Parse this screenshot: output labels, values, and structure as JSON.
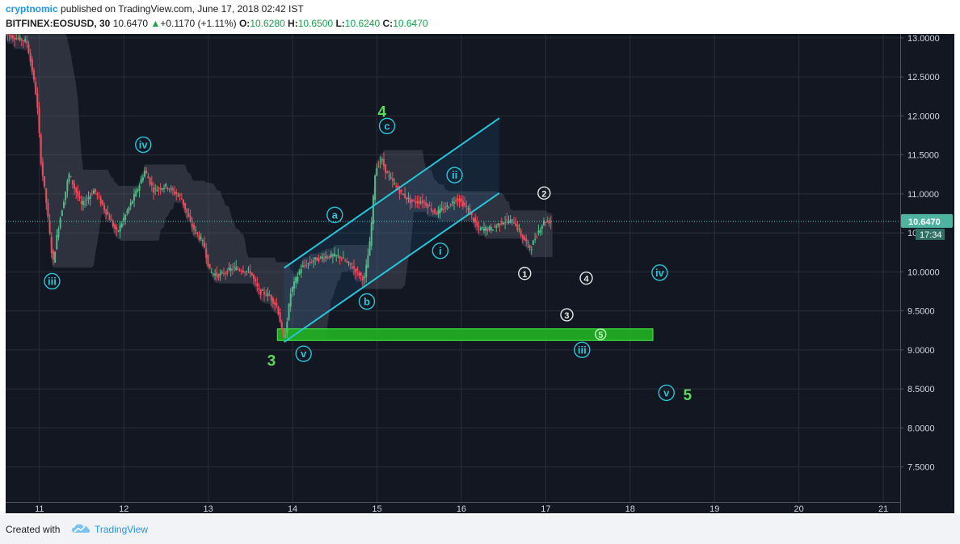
{
  "header": {
    "author": "cryptnomic",
    "published": "published on TradingView.com, June 17, 2018 02:42 IST",
    "symbol": "BITFINEX:EOSUSD, 30",
    "last": "10.6470",
    "change": "+0.1170 (+1.11%)",
    "o_label": "O:",
    "o_value": "10.6280",
    "h_label": "H:",
    "h_value": "10.6500",
    "l_label": "L:",
    "l_value": "10.6240",
    "c_label": "C:",
    "c_value": "10.6470"
  },
  "footer": {
    "created": "Created with",
    "brand": "TradingView"
  },
  "chart_data": {
    "type": "candlestick",
    "x_tick_labels": [
      "11",
      "12",
      "13",
      "14",
      "15",
      "16",
      "17",
      "18",
      "19",
      "20",
      "21"
    ],
    "y_tick_labels": [
      "13.0000",
      "12.5000",
      "12.0000",
      "11.5000",
      "11.0000",
      "10.5000",
      "10.0000",
      "9.5000",
      "9.0000",
      "8.5000",
      "8.0000",
      "7.5000"
    ],
    "y_ticks": [
      13.0,
      12.5,
      12.0,
      11.5,
      11.0,
      10.5,
      10.0,
      9.5,
      9.0,
      8.5,
      8.0,
      7.5
    ],
    "x_range": [
      10.6,
      21.2
    ],
    "y_range": [
      7.05,
      13.05
    ],
    "last_price": 10.647,
    "last_price_label": "10.6470",
    "countdown_label": "17:34",
    "colors": {
      "background": "#131722",
      "up": "#53b987",
      "down": "#eb4d5c",
      "channel": "#26c6da",
      "zone": "#33cc33",
      "wave_major": "#5dd95d",
      "grid": "#2a2e39",
      "price_line": "#4dd0c4"
    },
    "price_path": [
      [
        10.6,
        13.05
      ],
      [
        10.85,
        12.95
      ],
      [
        10.92,
        12.55
      ],
      [
        10.97,
        12.2
      ],
      [
        11.02,
        11.4
      ],
      [
        11.08,
        10.9
      ],
      [
        11.12,
        10.5
      ],
      [
        11.16,
        10.1
      ],
      [
        11.22,
        10.55
      ],
      [
        11.35,
        11.25
      ],
      [
        11.5,
        10.85
      ],
      [
        11.65,
        11.05
      ],
      [
        11.8,
        10.75
      ],
      [
        11.92,
        10.5
      ],
      [
        12.05,
        10.8
      ],
      [
        12.18,
        11.1
      ],
      [
        12.25,
        11.3
      ],
      [
        12.35,
        11.05
      ],
      [
        12.5,
        11.1
      ],
      [
        12.68,
        10.95
      ],
      [
        12.8,
        10.6
      ],
      [
        12.95,
        10.35
      ],
      [
        13.02,
        10.0
      ],
      [
        13.12,
        9.95
      ],
      [
        13.3,
        10.05
      ],
      [
        13.5,
        10.0
      ],
      [
        13.6,
        9.75
      ],
      [
        13.72,
        9.7
      ],
      [
        13.82,
        9.55
      ],
      [
        13.9,
        9.1
      ],
      [
        13.98,
        9.75
      ],
      [
        14.1,
        10.05
      ],
      [
        14.25,
        10.15
      ],
      [
        14.4,
        10.2
      ],
      [
        14.55,
        10.2
      ],
      [
        14.72,
        10.05
      ],
      [
        14.85,
        9.9
      ],
      [
        14.92,
        10.4
      ],
      [
        14.98,
        11.3
      ],
      [
        15.05,
        11.45
      ],
      [
        15.12,
        11.25
      ],
      [
        15.25,
        11.05
      ],
      [
        15.4,
        10.9
      ],
      [
        15.55,
        10.9
      ],
      [
        15.7,
        10.75
      ],
      [
        15.85,
        10.85
      ],
      [
        15.95,
        10.95
      ],
      [
        16.08,
        10.8
      ],
      [
        16.2,
        10.55
      ],
      [
        16.35,
        10.55
      ],
      [
        16.5,
        10.65
      ],
      [
        16.62,
        10.65
      ],
      [
        16.72,
        10.45
      ],
      [
        16.82,
        10.3
      ],
      [
        16.9,
        10.5
      ],
      [
        16.98,
        10.65
      ],
      [
        17.08,
        10.64
      ]
    ],
    "wave_labels": [
      {
        "text": "iii",
        "x": 11.15,
        "y": 9.88,
        "style": "circle-cyan"
      },
      {
        "text": "iv",
        "x": 12.23,
        "y": 11.63,
        "style": "circle-cyan"
      },
      {
        "text": "3",
        "x": 13.75,
        "y": 8.87,
        "style": "major"
      },
      {
        "text": "v",
        "x": 14.13,
        "y": 8.95,
        "style": "circle-cyan"
      },
      {
        "text": "a",
        "x": 14.5,
        "y": 10.73,
        "style": "circle-cyan"
      },
      {
        "text": "b",
        "x": 14.88,
        "y": 9.62,
        "style": "circle-cyan"
      },
      {
        "text": "4",
        "x": 15.06,
        "y": 12.06,
        "style": "major"
      },
      {
        "text": "c",
        "x": 15.12,
        "y": 11.87,
        "style": "circle-cyan"
      },
      {
        "text": "i",
        "x": 15.75,
        "y": 10.27,
        "style": "circle-cyan"
      },
      {
        "text": "ii",
        "x": 15.92,
        "y": 11.24,
        "style": "circle-cyan"
      },
      {
        "text": "1",
        "x": 16.75,
        "y": 9.98,
        "style": "circle-white"
      },
      {
        "text": "2",
        "x": 16.98,
        "y": 11.01,
        "style": "circle-white"
      },
      {
        "text": "3",
        "x": 17.25,
        "y": 9.45,
        "style": "circle-white"
      },
      {
        "text": "4",
        "x": 17.48,
        "y": 9.92,
        "style": "circle-white"
      },
      {
        "text": "5",
        "x": 17.65,
        "y": 9.2,
        "style": "circle-green"
      },
      {
        "text": "iii",
        "x": 17.43,
        "y": 9.0,
        "style": "circle-cyan"
      },
      {
        "text": "iv",
        "x": 18.35,
        "y": 9.99,
        "style": "circle-cyan"
      },
      {
        "text": "v",
        "x": 18.43,
        "y": 8.45,
        "style": "circle-cyan"
      },
      {
        "text": "5",
        "x": 18.68,
        "y": 8.43,
        "style": "major"
      }
    ],
    "channel": {
      "lower": [
        [
          13.9,
          9.1
        ],
        [
          16.45,
          11.01
        ]
      ],
      "upper": [
        [
          13.9,
          10.05
        ],
        [
          16.45,
          11.97
        ]
      ]
    },
    "support_zone": {
      "x": [
        13.82,
        18.27
      ],
      "y": [
        9.12,
        9.27
      ]
    }
  }
}
